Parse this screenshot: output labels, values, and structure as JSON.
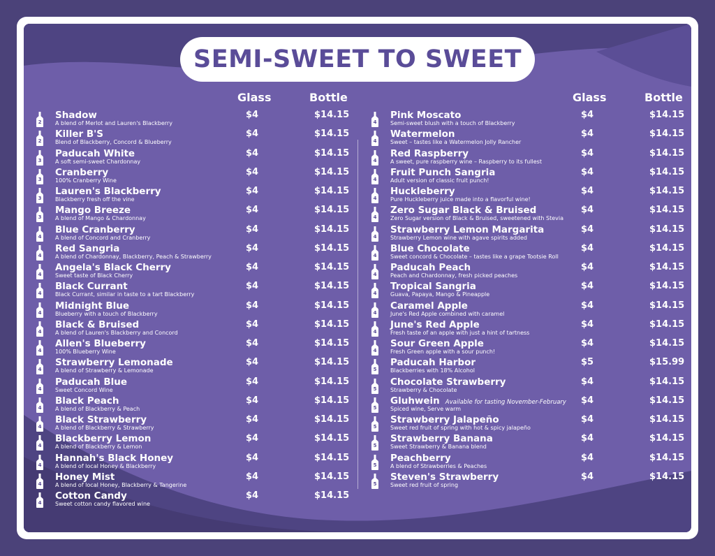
{
  "title": "SEMI-SWEET TO SWEET",
  "headers": {
    "glass": "Glass",
    "bottle": "Bottle"
  },
  "colors": {
    "background": "#4b4279",
    "panel": "#6e5ea9",
    "accent": "#5a4c98",
    "text": "#ffffff"
  },
  "left": [
    {
      "num": "2",
      "name": "Shadow",
      "desc": "A blend of Merlot and Lauren's Blackberry",
      "glass": "$4",
      "bottle": "$14.15"
    },
    {
      "num": "2",
      "name": "Killer B'S",
      "desc": "Blend of Blackberry, Concord & Blueberry",
      "glass": "$4",
      "bottle": "$14.15"
    },
    {
      "num": "3",
      "name": "Paducah White",
      "desc": "A soft semi-sweet Chardonnay",
      "glass": "$4",
      "bottle": "$14.15"
    },
    {
      "num": "3",
      "name": "Cranberry",
      "desc": "100% Cranberry Wine",
      "glass": "$4",
      "bottle": "$14.15"
    },
    {
      "num": "3",
      "name": "Lauren's Blackberry",
      "desc": "Blackberry fresh off the vine",
      "glass": "$4",
      "bottle": "$14.15"
    },
    {
      "num": "3",
      "name": "Mango Breeze",
      "desc": "A blend of Mango & Chardonnay",
      "glass": "$4",
      "bottle": "$14.15"
    },
    {
      "num": "4",
      "name": "Blue Cranberry",
      "desc": "A blend of Concord and Cranberry",
      "glass": "$4",
      "bottle": "$14.15"
    },
    {
      "num": "4",
      "name": "Red Sangria",
      "desc": "A blend of Chardonnay, Blackberry, Peach & Strawberry",
      "glass": "$4",
      "bottle": "$14.15"
    },
    {
      "num": "4",
      "name": "Angela's Black Cherry",
      "desc": "Sweet taste of Black Cherry",
      "glass": "$4",
      "bottle": "$14.15"
    },
    {
      "num": "4",
      "name": "Black Currant",
      "desc": "Black Currant, similar in taste to a tart Blackberry",
      "glass": "$4",
      "bottle": "$14.15"
    },
    {
      "num": "4",
      "name": "Midnight Blue",
      "desc": "Blueberry with a touch of Blackberry",
      "glass": "$4",
      "bottle": "$14.15"
    },
    {
      "num": "4",
      "name": "Black & Bruised",
      "desc": "A blend of Lauren's Blackberry and Concord",
      "glass": "$4",
      "bottle": "$14.15"
    },
    {
      "num": "4",
      "name": "Allen's Blueberry",
      "desc": "100% Blueberry Wine",
      "glass": "$4",
      "bottle": "$14.15"
    },
    {
      "num": "4",
      "name": "Strawberry Lemonade",
      "desc": "A blend of Strawberry & Lemonade",
      "glass": "$4",
      "bottle": "$14.15"
    },
    {
      "num": "4",
      "name": "Paducah Blue",
      "desc": "Sweet Concord Wine",
      "glass": "$4",
      "bottle": "$14.15"
    },
    {
      "num": "4",
      "name": "Black Peach",
      "desc": "A blend of Blackberry & Peach",
      "glass": "$4",
      "bottle": "$14.15"
    },
    {
      "num": "4",
      "name": "Black Strawberry",
      "desc": "A blend of Blackberry & Strawberry",
      "glass": "$4",
      "bottle": "$14.15"
    },
    {
      "num": "4",
      "name": "Blackberry Lemon",
      "desc": "A blend of Blackberry & Lemon",
      "glass": "$4",
      "bottle": "$14.15"
    },
    {
      "num": "4",
      "name": "Hannah's Black Honey",
      "desc": "A blend of local Honey & Blackberry",
      "glass": "$4",
      "bottle": "$14.15"
    },
    {
      "num": "4",
      "name": "Honey Mist",
      "desc": "A blend of local Honey, Blackberry & Tangerine",
      "glass": "$4",
      "bottle": "$14.15"
    },
    {
      "num": "4",
      "name": "Cotton Candy",
      "desc": "Sweet cotton candy flavored wine",
      "glass": "$4",
      "bottle": "$14.15"
    }
  ],
  "right": [
    {
      "num": "4",
      "name": "Pink Moscato",
      "desc": "Semi-sweet blush with a touch of Blackberry",
      "glass": "$4",
      "bottle": "$14.15"
    },
    {
      "num": "4",
      "name": "Watermelon",
      "desc": "Sweet – tastes like a Watermelon Jolly Rancher",
      "glass": "$4",
      "bottle": "$14.15"
    },
    {
      "num": "4",
      "name": "Red Raspberry",
      "desc": "A sweet, pure raspberry wine – Raspberry to its fullest",
      "glass": "$4",
      "bottle": "$14.15"
    },
    {
      "num": "4",
      "name": "Fruit Punch Sangria",
      "desc": "Adult version of classic fruit punch!",
      "glass": "$4",
      "bottle": "$14.15"
    },
    {
      "num": "4",
      "name": "Huckleberry",
      "desc": "Pure Huckleberry juice made into a flavorful wine!",
      "glass": "$4",
      "bottle": "$14.15"
    },
    {
      "num": "4",
      "name": "Zero Sugar Black & Bruised",
      "desc": "Zero Sugar version of Black & Bruised, sweetened with Stevia",
      "glass": "$4",
      "bottle": "$14.15"
    },
    {
      "num": "4",
      "name": "Strawberry Lemon Margarita",
      "desc": "Strawberry Lemon wine with agave spirits added",
      "glass": "$4",
      "bottle": "$14.15"
    },
    {
      "num": "4",
      "name": "Blue Chocolate",
      "desc": "Sweet concord & Chocolate – tastes like a grape Tootsie Roll",
      "glass": "$4",
      "bottle": "$14.15"
    },
    {
      "num": "4",
      "name": "Paducah Peach",
      "desc": "Peach and Chardonnay, fresh picked peaches",
      "glass": "$4",
      "bottle": "$14.15"
    },
    {
      "num": "4",
      "name": "Tropical Sangria",
      "desc": "Guava, Papaya, Mango & Pineapple",
      "glass": "$4",
      "bottle": "$14.15"
    },
    {
      "num": "4",
      "name": "Caramel Apple",
      "desc": "June's Red Apple combined with caramel",
      "glass": "$4",
      "bottle": "$14.15"
    },
    {
      "num": "4",
      "name": "June's Red Apple",
      "desc": "Fresh taste of an apple with just a hint of tartness",
      "glass": "$4",
      "bottle": "$14.15"
    },
    {
      "num": "4",
      "name": "Sour Green Apple",
      "desc": "Fresh Green apple with a sour punch!",
      "glass": "$4",
      "bottle": "$14.15"
    },
    {
      "num": "5",
      "name": "Paducah Harbor",
      "desc": "Blackberries with 18% Alcohol",
      "glass": "$5",
      "bottle": "$15.99"
    },
    {
      "num": "5",
      "name": "Chocolate Strawberry",
      "desc": "Strawberry & Chocolate",
      "glass": "$4",
      "bottle": "$14.15"
    },
    {
      "num": "5",
      "name": "Gluhwein",
      "note": "Available for tasting November-February",
      "desc": "Spiced wine, Serve warm",
      "glass": "$4",
      "bottle": "$14.15"
    },
    {
      "num": "5",
      "name": "Strawberry Jalapeño",
      "desc": "Sweet red fruit of spring with hot & spicy jalapeño",
      "glass": "$4",
      "bottle": "$14.15"
    },
    {
      "num": "5",
      "name": "Strawberry Banana",
      "desc": "Sweet Strawberry & Banana blend",
      "glass": "$4",
      "bottle": "$14.15"
    },
    {
      "num": "5",
      "name": "Peachberry",
      "desc": "A blend of Strawberries & Peaches",
      "glass": "$4",
      "bottle": "$14.15"
    },
    {
      "num": "5",
      "name": "Steven's Strawberry",
      "desc": "Sweet red fruit of spring",
      "glass": "$4",
      "bottle": "$14.15"
    }
  ]
}
